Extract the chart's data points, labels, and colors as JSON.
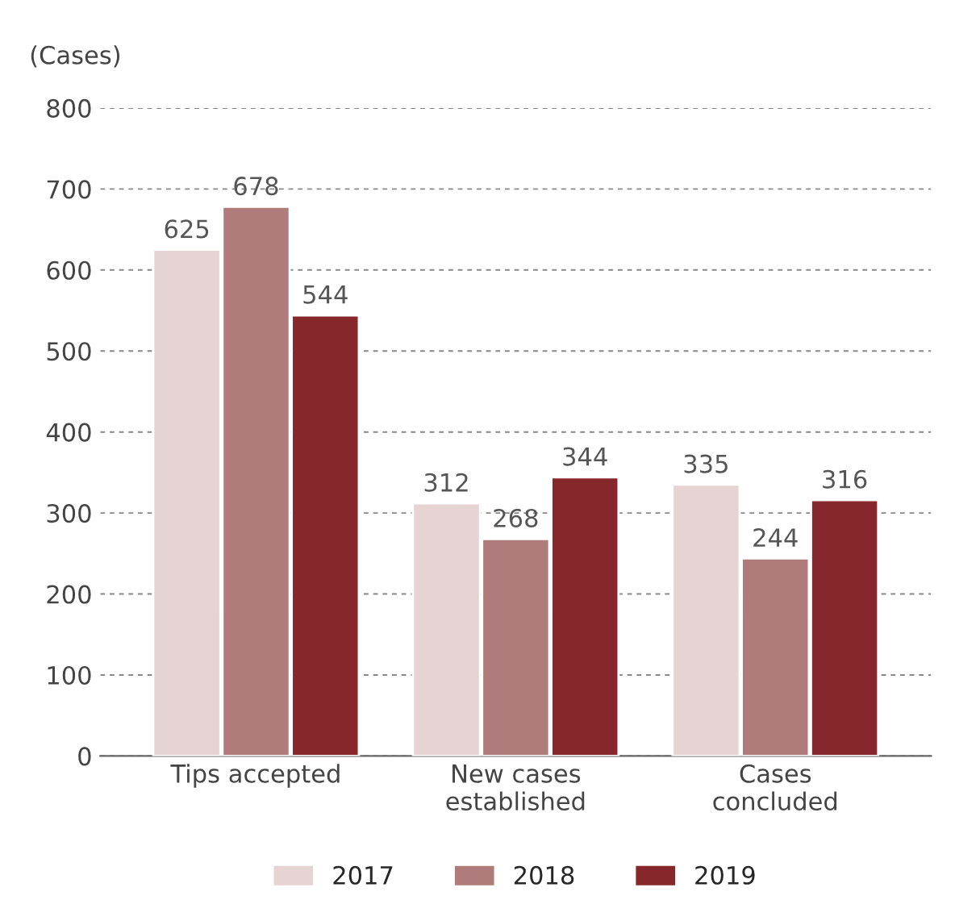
{
  "chart_data": {
    "type": "bar",
    "ylabel": "(Cases)",
    "categories": [
      "Tips accepted",
      "New cases\nestablished",
      "Cases\nconcluded"
    ],
    "series": [
      {
        "name": "2017",
        "color": "#e6d3d3",
        "values": [
          625,
          312,
          335
        ]
      },
      {
        "name": "2018",
        "color": "#b07b7b",
        "values": [
          678,
          268,
          244
        ]
      },
      {
        "name": "2019",
        "color": "#85272b",
        "values": [
          544,
          344,
          316
        ]
      }
    ],
    "ylim": [
      0,
      800
    ],
    "yticks": [
      0,
      100,
      200,
      300,
      400,
      500,
      600,
      700,
      800
    ],
    "grid": "y",
    "legend": "bottom",
    "data_labels": true
  }
}
